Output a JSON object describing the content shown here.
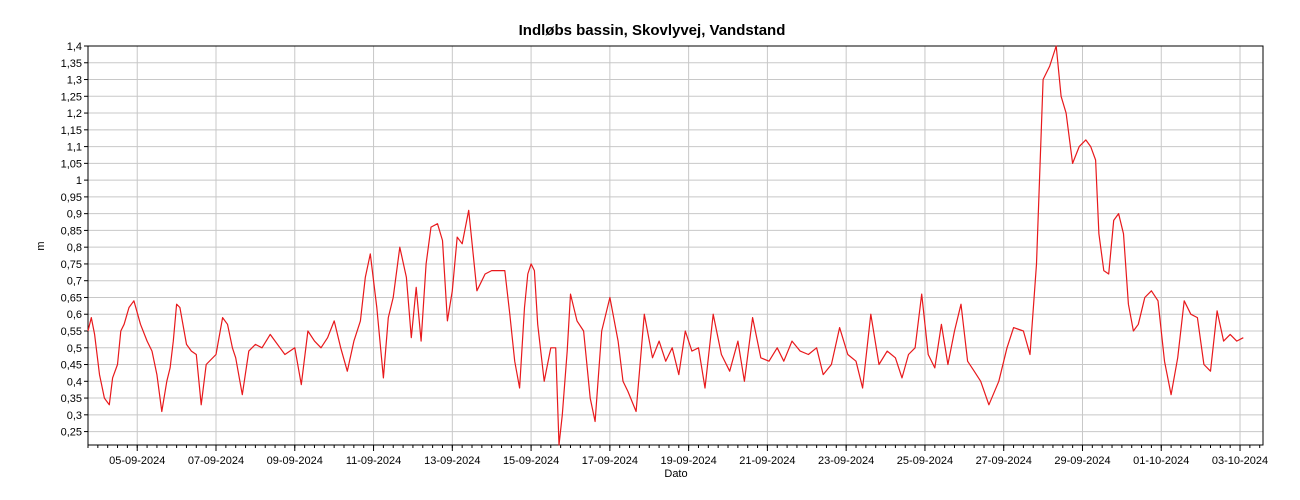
{
  "chart_data": {
    "type": "line",
    "title": "Indløbs bassin, Skovlyvej, Vandstand",
    "xlabel": "Dato",
    "ylabel": "m",
    "ylim": [
      0.21,
      1.4
    ],
    "xlim": [
      "2024-09-04 06:00",
      "2024-10-04 02:00"
    ],
    "grid": true,
    "legend": "none",
    "colors": {
      "line": "#e8191c",
      "grid": "#c8c8c8",
      "axis": "#000000"
    },
    "y_ticks": [
      "0,25",
      "0,3",
      "0,35",
      "0,4",
      "0,45",
      "0,5",
      "0,55",
      "0,6",
      "0,65",
      "0,7",
      "0,75",
      "0,8",
      "0,85",
      "0,9",
      "0,95",
      "1",
      "1,05",
      "1,1",
      "1,15",
      "1,2",
      "1,25",
      "1,3",
      "1,35",
      "1,4"
    ],
    "x_ticks": [
      "05-09-2024",
      "07-09-2024",
      "09-09-2024",
      "11-09-2024",
      "13-09-2024",
      "15-09-2024",
      "17-09-2024",
      "19-09-2024",
      "21-09-2024",
      "23-09-2024",
      "25-09-2024",
      "27-09-2024",
      "29-09-2024",
      "01-10-2024",
      "03-10-2024"
    ],
    "series": [
      {
        "x": [
          "2024-09-04 06:00",
          "2024-09-04 08:00",
          "2024-09-04 10:00",
          "2024-09-04 13:00",
          "2024-09-04 16:00",
          "2024-09-04 19:00",
          "2024-09-04 21:00",
          "2024-09-05 00:00",
          "2024-09-05 02:00",
          "2024-09-05 04:00",
          "2024-09-05 07:00",
          "2024-09-05 10:00",
          "2024-09-05 14:00",
          "2024-09-05 18:00",
          "2024-09-05 21:00",
          "2024-09-06 00:00",
          "2024-09-06 03:00",
          "2024-09-06 06:00",
          "2024-09-06 08:00",
          "2024-09-06 10:00",
          "2024-09-06 12:00",
          "2024-09-06 14:00",
          "2024-09-06 18:00",
          "2024-09-06 21:00",
          "2024-09-07 00:00",
          "2024-09-07 03:00",
          "2024-09-07 06:00",
          "2024-09-07 12:00",
          "2024-09-07 16:00",
          "2024-09-07 19:00",
          "2024-09-07 22:00",
          "2024-09-08 00:00",
          "2024-09-08 04:00",
          "2024-09-08 08:00",
          "2024-09-08 12:00",
          "2024-09-08 16:00",
          "2024-09-08 21:00",
          "2024-09-09 00:00",
          "2024-09-09 03:00",
          "2024-09-09 06:00",
          "2024-09-09 12:00",
          "2024-09-09 16:00",
          "2024-09-09 20:00",
          "2024-09-10 00:00",
          "2024-09-10 04:00",
          "2024-09-10 08:00",
          "2024-09-10 12:00",
          "2024-09-10 16:00",
          "2024-09-10 20:00",
          "2024-09-11 00:00",
          "2024-09-11 04:00",
          "2024-09-11 07:00",
          "2024-09-11 10:00",
          "2024-09-11 14:00",
          "2024-09-11 18:00",
          "2024-09-11 21:00",
          "2024-09-12 00:00",
          "2024-09-12 04:00",
          "2024-09-12 08:00",
          "2024-09-12 11:00",
          "2024-09-12 14:00",
          "2024-09-12 17:00",
          "2024-09-12 20:00",
          "2024-09-12 23:00",
          "2024-09-13 03:00",
          "2024-09-13 06:00",
          "2024-09-13 09:00",
          "2024-09-13 12:00",
          "2024-09-13 15:00",
          "2024-09-13 18:00",
          "2024-09-13 22:00",
          "2024-09-14 03:00",
          "2024-09-14 08:00",
          "2024-09-14 12:00",
          "2024-09-14 16:00",
          "2024-09-14 20:00",
          "2024-09-14 23:00",
          "2024-09-15 02:00",
          "2024-09-15 05:00",
          "2024-09-15 08:00",
          "2024-09-15 10:00",
          "2024-09-15 12:00",
          "2024-09-15 14:00",
          "2024-09-15 16:00",
          "2024-09-15 20:00",
          "2024-09-16 00:00",
          "2024-09-16 03:00",
          "2024-09-16 05:00",
          "2024-09-16 07:00",
          "2024-09-16 10:00",
          "2024-09-16 12:00",
          "2024-09-16 16:00",
          "2024-09-16 20:00",
          "2024-09-17 00:00",
          "2024-09-17 03:00",
          "2024-09-17 07:00",
          "2024-09-17 12:00",
          "2024-09-17 17:00",
          "2024-09-17 20:00",
          "2024-09-17 23:00",
          "2024-09-18 04:00",
          "2024-09-18 09:00",
          "2024-09-18 14:00",
          "2024-09-18 18:00",
          "2024-09-18 22:00",
          "2024-09-19 02:00",
          "2024-09-19 06:00",
          "2024-09-19 10:00",
          "2024-09-19 14:00",
          "2024-09-19 18:00",
          "2024-09-19 22:00",
          "2024-09-20 03:00",
          "2024-09-20 08:00",
          "2024-09-20 13:00",
          "2024-09-20 18:00",
          "2024-09-20 22:00",
          "2024-09-21 03:00",
          "2024-09-21 08:00",
          "2024-09-21 13:00",
          "2024-09-21 18:00",
          "2024-09-21 22:00",
          "2024-09-22 03:00",
          "2024-09-22 08:00",
          "2024-09-22 13:00",
          "2024-09-22 18:00",
          "2024-09-22 22:00",
          "2024-09-23 03:00",
          "2024-09-23 08:00",
          "2024-09-23 13:00",
          "2024-09-23 18:00",
          "2024-09-23 22:00",
          "2024-09-24 03:00",
          "2024-09-24 08:00",
          "2024-09-24 13:00",
          "2024-09-24 18:00",
          "2024-09-24 22:00",
          "2024-09-25 02:00",
          "2024-09-25 06:00",
          "2024-09-25 10:00",
          "2024-09-25 14:00",
          "2024-09-25 18:00",
          "2024-09-25 22:00",
          "2024-09-26 02:00",
          "2024-09-26 06:00",
          "2024-09-26 10:00",
          "2024-09-26 14:00",
          "2024-09-26 18:00",
          "2024-09-26 22:00",
          "2024-09-27 03:00",
          "2024-09-27 09:00",
          "2024-09-27 14:00",
          "2024-09-27 18:00",
          "2024-09-28 00:00",
          "2024-09-28 04:00",
          "2024-09-28 08:00",
          "2024-09-28 12:00",
          "2024-09-28 16:00",
          "2024-09-28 20:00",
          "2024-09-28 23:00",
          "2024-09-29 02:00",
          "2024-09-29 06:00",
          "2024-09-29 10:00",
          "2024-09-29 14:00",
          "2024-09-29 17:00",
          "2024-09-29 20:00",
          "2024-09-29 22:00",
          "2024-09-30 01:00",
          "2024-09-30 04:00",
          "2024-09-30 07:00",
          "2024-09-30 10:00",
          "2024-09-30 13:00",
          "2024-09-30 16:00",
          "2024-09-30 19:00",
          "2024-09-30 22:00",
          "2024-10-01 02:00",
          "2024-10-01 06:00",
          "2024-10-01 10:00",
          "2024-10-01 14:00",
          "2024-10-01 18:00",
          "2024-10-01 22:00",
          "2024-10-02 02:00",
          "2024-10-02 06:00",
          "2024-10-02 10:00",
          "2024-10-02 14:00",
          "2024-10-02 18:00",
          "2024-10-02 22:00",
          "2024-10-03 02:00",
          "2024-10-03 06:00",
          "2024-10-03 10:00",
          "2024-10-03 14:00"
        ],
        "values": [
          0.55,
          0.59,
          0.54,
          0.42,
          0.35,
          0.33,
          0.41,
          0.45,
          0.55,
          0.57,
          0.62,
          0.64,
          0.57,
          0.52,
          0.49,
          0.42,
          0.31,
          0.4,
          0.44,
          0.52,
          0.63,
          0.62,
          0.51,
          0.49,
          0.48,
          0.33,
          0.45,
          0.48,
          0.59,
          0.57,
          0.5,
          0.47,
          0.36,
          0.49,
          0.51,
          0.5,
          0.54,
          0.52,
          0.5,
          0.48,
          0.5,
          0.39,
          0.55,
          0.52,
          0.5,
          0.53,
          0.58,
          0.5,
          0.43,
          0.52,
          0.58,
          0.71,
          0.78,
          0.62,
          0.41,
          0.59,
          0.65,
          0.8,
          0.71,
          0.53,
          0.68,
          0.52,
          0.75,
          0.86,
          0.87,
          0.82,
          0.58,
          0.67,
          0.83,
          0.81,
          0.91,
          0.67,
          0.72,
          0.73,
          0.73,
          0.73,
          0.6,
          0.46,
          0.38,
          0.62,
          0.72,
          0.75,
          0.73,
          0.57,
          0.4,
          0.5,
          0.5,
          0.21,
          0.3,
          0.49,
          0.66,
          0.58,
          0.55,
          0.35,
          0.28,
          0.55,
          0.65,
          0.52,
          0.4,
          0.37,
          0.31,
          0.6,
          0.47,
          0.52,
          0.46,
          0.5,
          0.42,
          0.55,
          0.49,
          0.5,
          0.38,
          0.6,
          0.48,
          0.43,
          0.52,
          0.4,
          0.59,
          0.47,
          0.46,
          0.5,
          0.46,
          0.52,
          0.49,
          0.48,
          0.5,
          0.42,
          0.45,
          0.56,
          0.48,
          0.46,
          0.38,
          0.6,
          0.45,
          0.49,
          0.47,
          0.41,
          0.48,
          0.5,
          0.66,
          0.48,
          0.44,
          0.57,
          0.45,
          0.55,
          0.63,
          0.46,
          0.43,
          0.4,
          0.33,
          0.4,
          0.5,
          0.56,
          0.55,
          0.48,
          0.75,
          1.3,
          1.34,
          1.4,
          1.25,
          1.2,
          1.05,
          1.1,
          1.12,
          1.1,
          1.06,
          0.84,
          0.73,
          0.72,
          0.88,
          0.9,
          0.84,
          0.63,
          0.55,
          0.57,
          0.65,
          0.67,
          0.64,
          0.46,
          0.36,
          0.47,
          0.64,
          0.6,
          0.59,
          0.45,
          0.43,
          0.61,
          0.52,
          0.54,
          0.52,
          0.53
        ]
      }
    ]
  }
}
